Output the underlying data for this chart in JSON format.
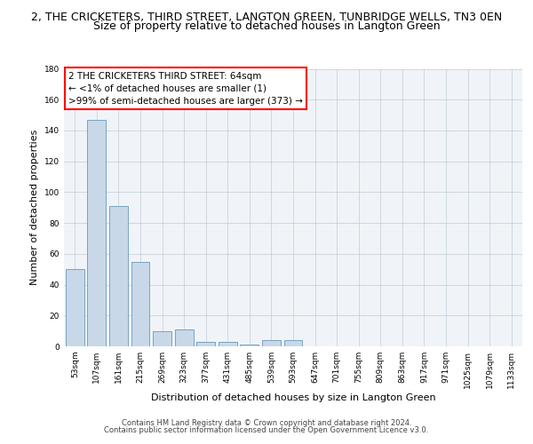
{
  "title": "2, THE CRICKETERS, THIRD STREET, LANGTON GREEN, TUNBRIDGE WELLS, TN3 0EN",
  "subtitle": "Size of property relative to detached houses in Langton Green",
  "xlabel": "Distribution of detached houses by size in Langton Green",
  "ylabel": "Number of detached properties",
  "bar_color": "#c8d8e8",
  "bar_edge_color": "#6699bb",
  "background_color": "#f0f4f8",
  "categories": [
    "53sqm",
    "107sqm",
    "161sqm",
    "215sqm",
    "269sqm",
    "323sqm",
    "377sqm",
    "431sqm",
    "485sqm",
    "539sqm",
    "593sqm",
    "647sqm",
    "701sqm",
    "755sqm",
    "809sqm",
    "863sqm",
    "917sqm",
    "971sqm",
    "1025sqm",
    "1079sqm",
    "1133sqm"
  ],
  "values": [
    50,
    147,
    91,
    55,
    10,
    11,
    3,
    3,
    1,
    4,
    4,
    0,
    0,
    0,
    0,
    0,
    0,
    0,
    0,
    0,
    0
  ],
  "ylim": [
    0,
    180
  ],
  "yticks": [
    0,
    20,
    40,
    60,
    80,
    100,
    120,
    140,
    160,
    180
  ],
  "annotation_box_text": "2 THE CRICKETERS THIRD STREET: 64sqm\n← <1% of detached houses are smaller (1)\n>99% of semi-detached houses are larger (373) →",
  "footer_line1": "Contains HM Land Registry data © Crown copyright and database right 2024.",
  "footer_line2": "Contains public sector information licensed under the Open Government Licence v3.0.",
  "grid_color": "#c0ccd8",
  "title_fontsize": 9,
  "subtitle_fontsize": 9,
  "annotation_fontsize": 7.5,
  "tick_fontsize": 6.5,
  "label_fontsize": 8,
  "footer_fontsize": 6
}
